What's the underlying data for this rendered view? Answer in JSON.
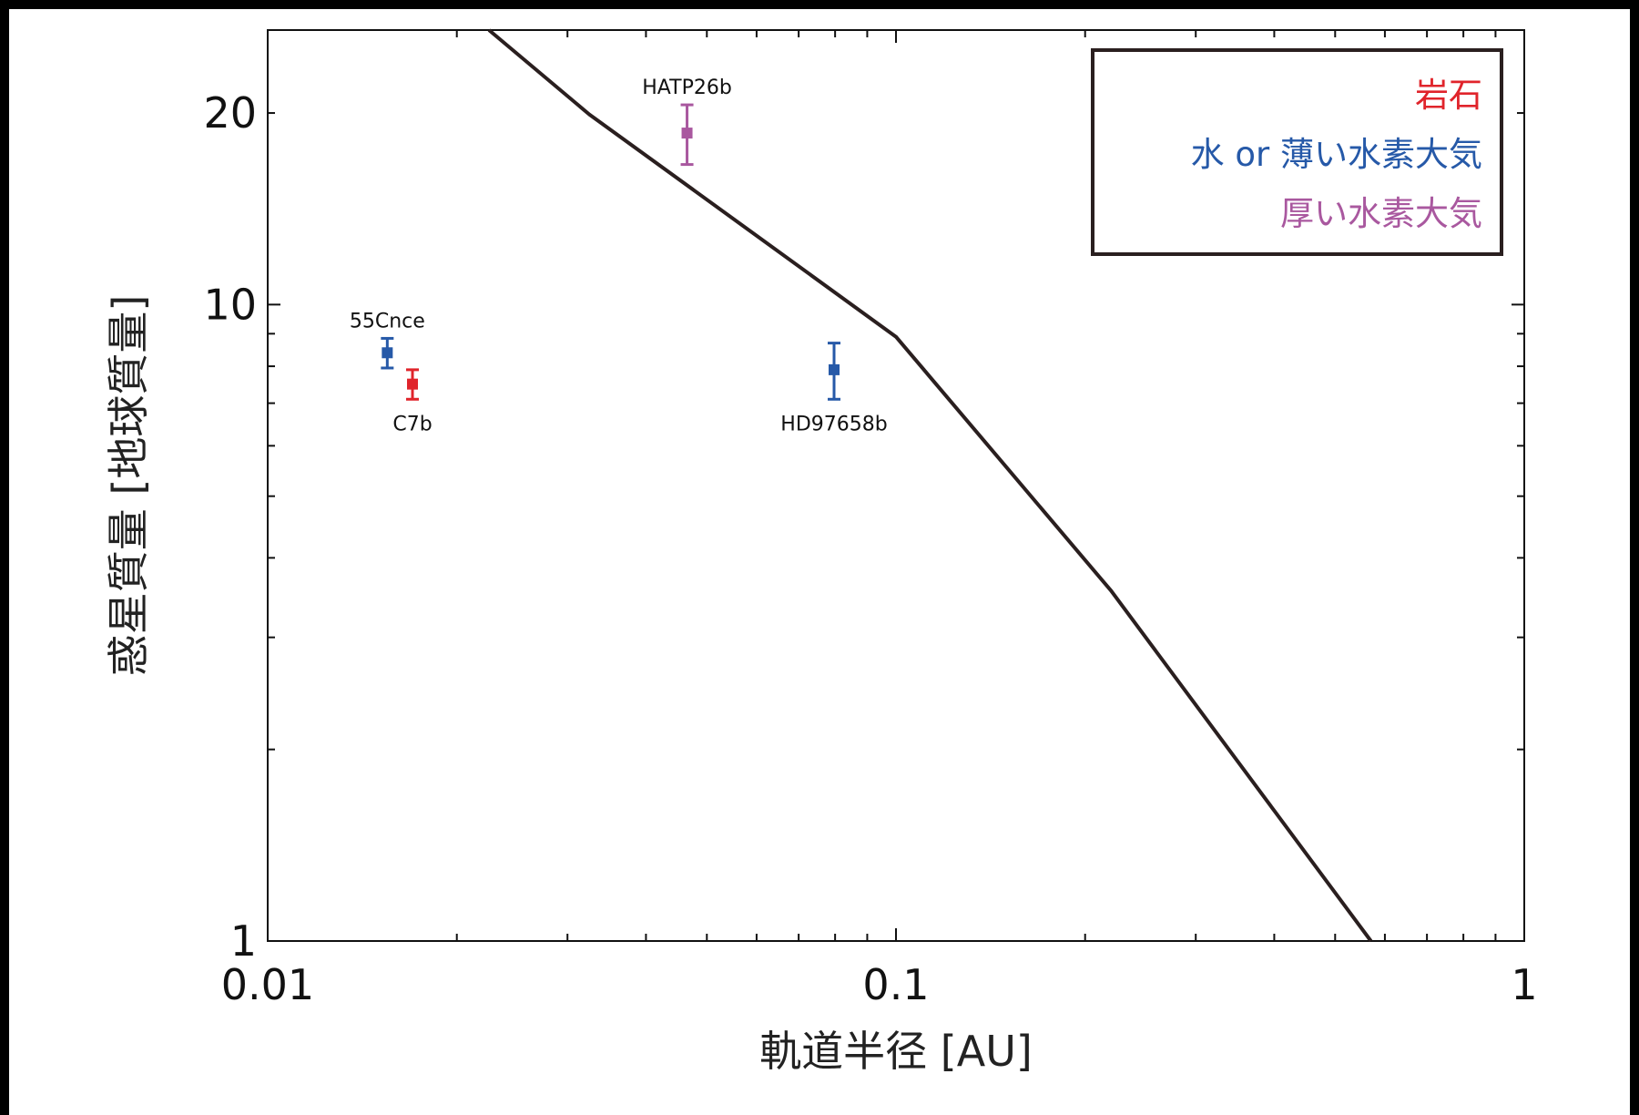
{
  "chart_data": {
    "type": "scatter",
    "xlabel": "軌道半径 [AU]",
    "ylabel": "惑星質量 [地球質量]",
    "x_scale": "log",
    "y_scale": "log",
    "xlim": [
      0.01,
      1
    ],
    "ylim": [
      1,
      27
    ],
    "x_ticks": [
      {
        "value": 0.01,
        "label": "0.01"
      },
      {
        "value": 0.1,
        "label": "0.1"
      },
      {
        "value": 1,
        "label": "1"
      }
    ],
    "y_ticks": [
      {
        "value": 1,
        "label": "1"
      },
      {
        "value": 10,
        "label": "10"
      },
      {
        "value": 20,
        "label": "20"
      }
    ],
    "grid": false,
    "legend_position": "top-right",
    "legend": [
      {
        "label": "岩石",
        "color": "#e0242b"
      },
      {
        "label": "水 or 薄い水素大気",
        "color": "#2659a8"
      },
      {
        "label": "厚い水素大気",
        "color": "#a9589f"
      }
    ],
    "points": [
      {
        "label": "55Cnce",
        "x": 0.0155,
        "y": 8.4,
        "yerr_low": 7.95,
        "yerr_high": 8.85,
        "category": 1,
        "label_pos": "above"
      },
      {
        "label": "C7b",
        "x": 0.017,
        "y": 7.5,
        "yerr_low": 7.1,
        "yerr_high": 7.9,
        "category": 0,
        "label_pos": "below"
      },
      {
        "label": "HATP26b",
        "x": 0.0465,
        "y": 18.6,
        "yerr_low": 16.6,
        "yerr_high": 20.6,
        "category": 2,
        "label_pos": "above"
      },
      {
        "label": "HD97658b",
        "x": 0.0797,
        "y": 7.9,
        "yerr_low": 7.1,
        "yerr_high": 8.7,
        "category": 1,
        "label_pos": "below"
      }
    ],
    "boundary_line": {
      "x": [
        0.0225,
        0.0325,
        0.1,
        0.22,
        0.57
      ],
      "y": [
        27,
        19.9,
        8.9,
        3.55,
        1.0
      ],
      "color": "#2a1f1f"
    }
  }
}
